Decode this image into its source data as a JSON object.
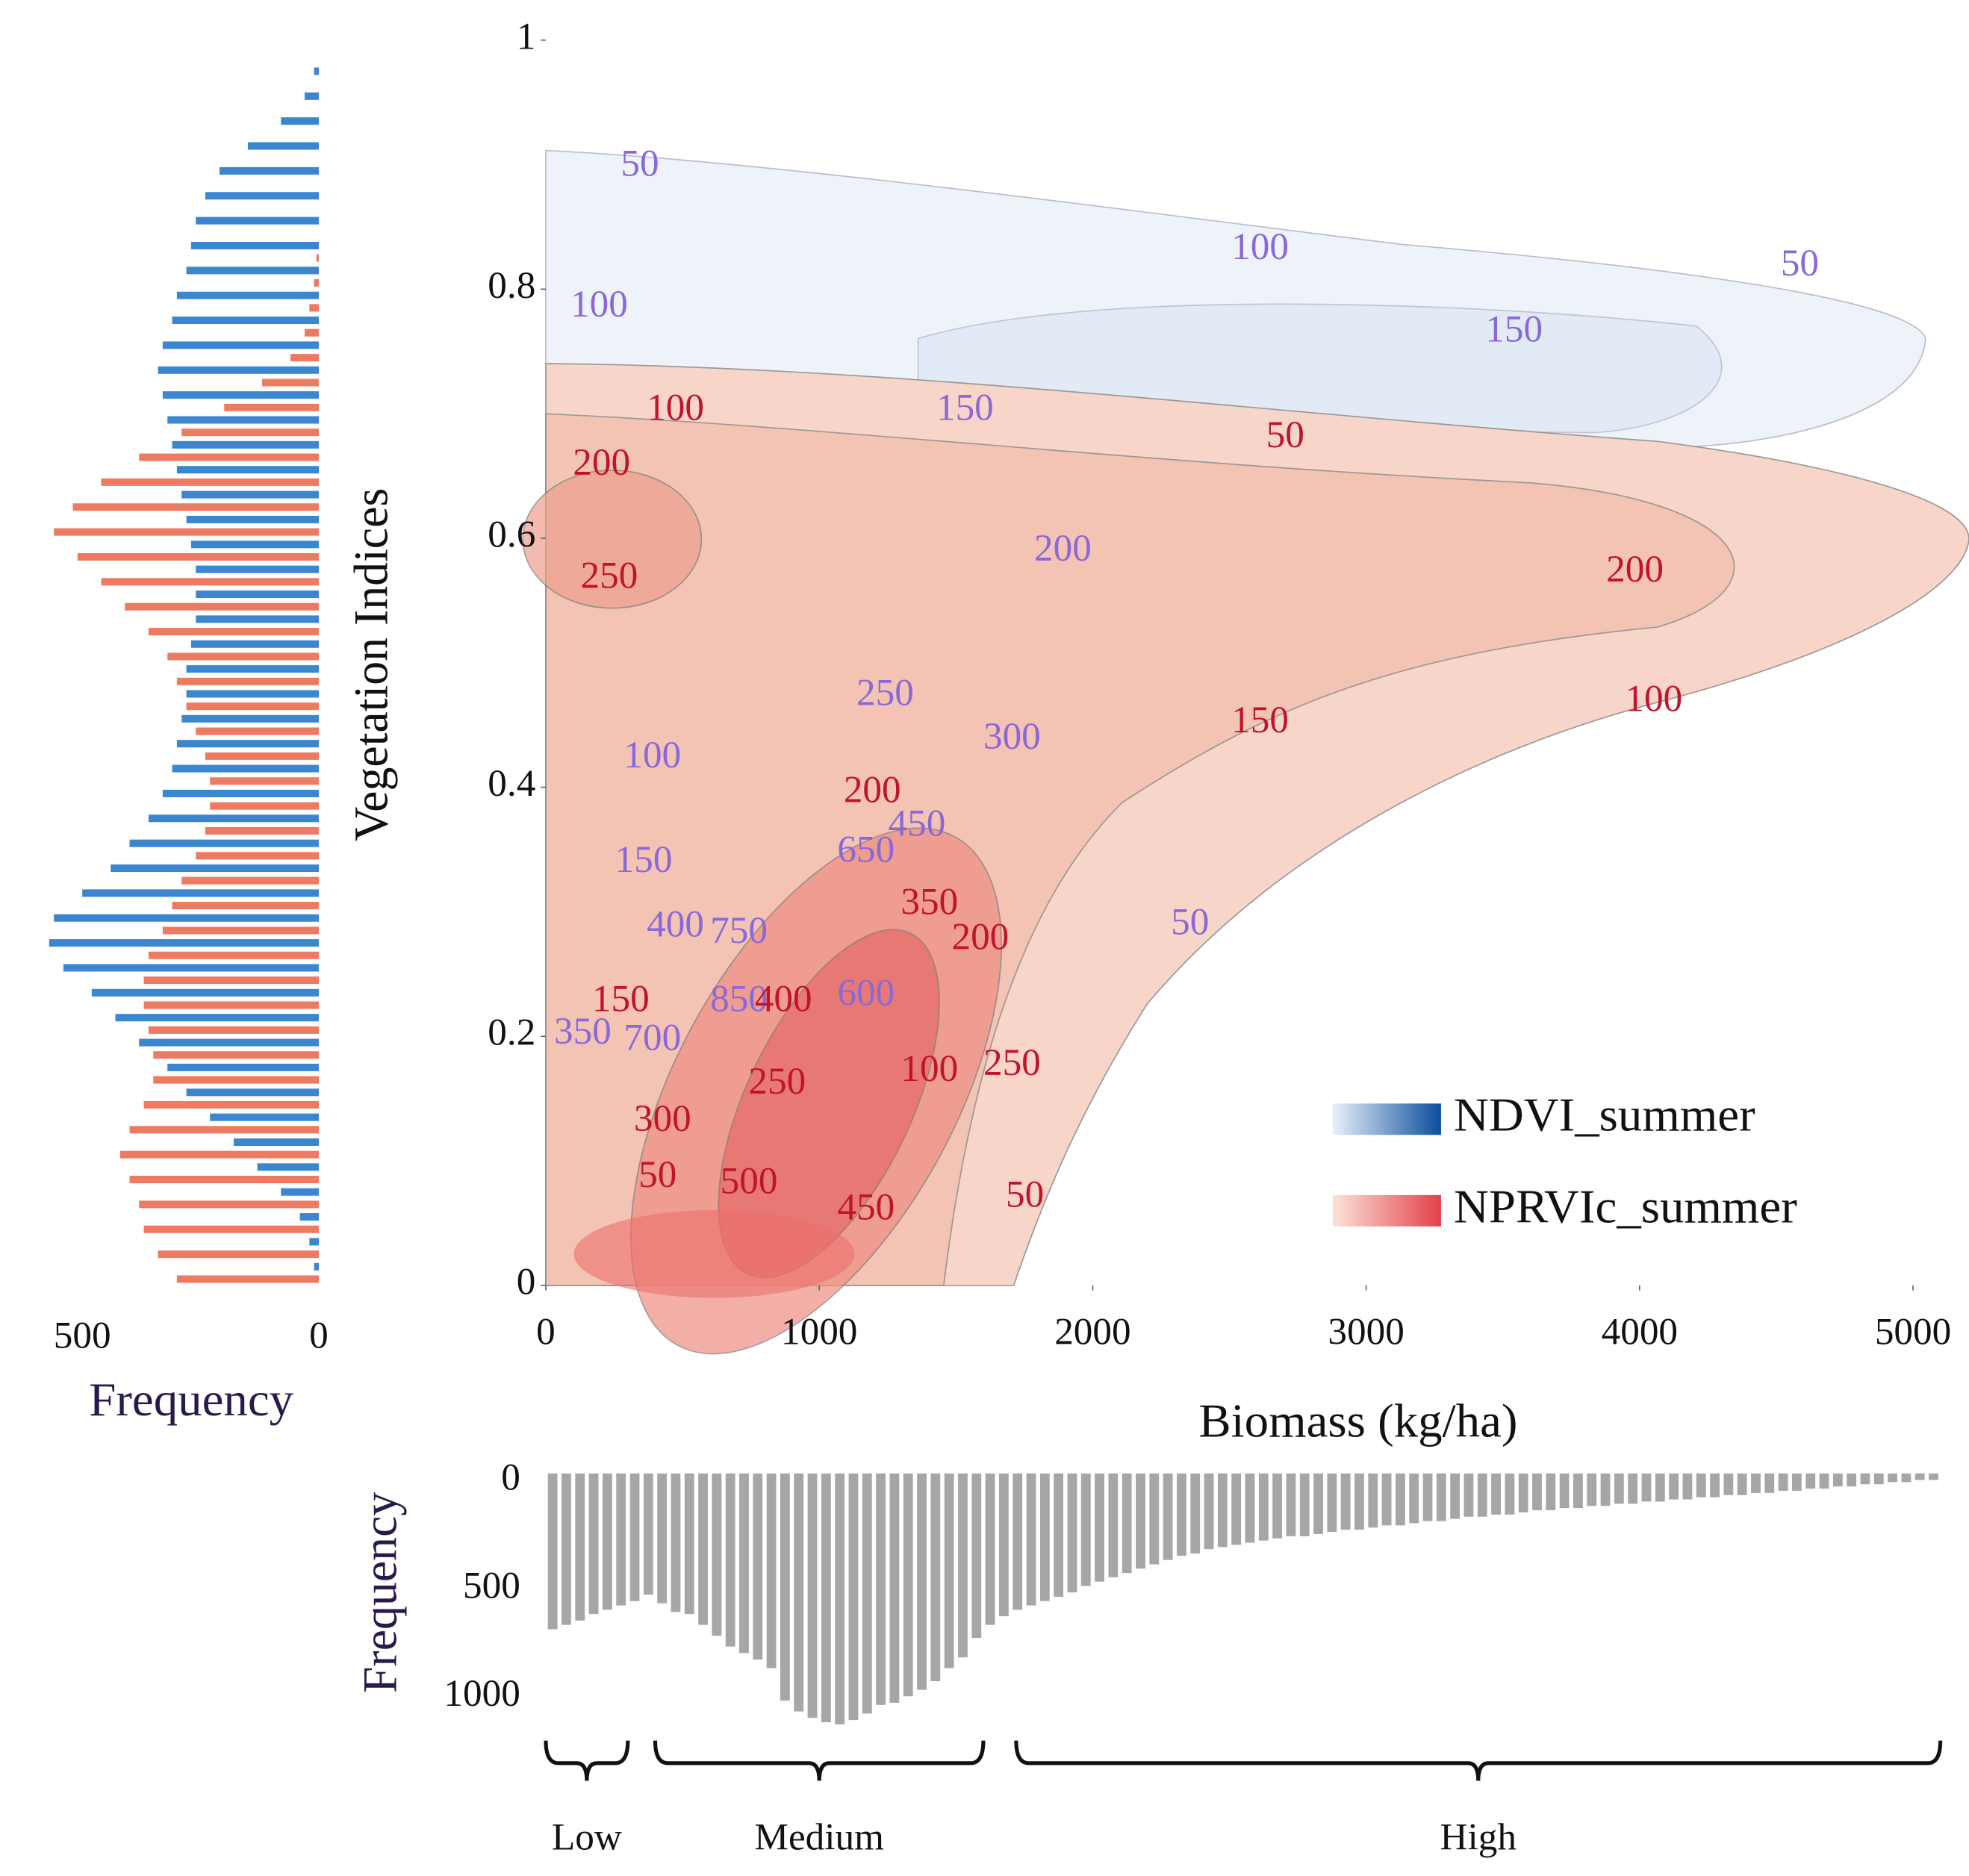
{
  "chart_data": [
    {
      "type": "contour",
      "xlabel": "Biomass (kg/ha)",
      "ylabel": "Vegetation Indices",
      "xlim": [
        0,
        5200
      ],
      "ylim": [
        0,
        1
      ],
      "xticks": [
        0,
        1000,
        2000,
        3000,
        4000,
        5000
      ],
      "yticks": [
        0,
        0.2,
        0.4,
        0.6,
        0.8,
        1
      ],
      "legend": "lower right",
      "series": [
        {
          "name": "NDVI_summer",
          "color": "#1f5fa8",
          "label_color": "#8a68d8",
          "labels": [
            {
              "level": 50,
              "x": 344,
              "y": 0.898
            },
            {
              "level": 100,
              "x": 2612,
              "y": 0.831
            },
            {
              "level": 50,
              "x": 4586,
              "y": 0.818
            },
            {
              "level": 100,
              "x": 195,
              "y": 0.785
            },
            {
              "level": 150,
              "x": 3541,
              "y": 0.765
            },
            {
              "level": 150,
              "x": 1533,
              "y": 0.702
            },
            {
              "level": 200,
              "x": 1891,
              "y": 0.589
            },
            {
              "level": 250,
              "x": 1241,
              "y": 0.473
            },
            {
              "level": 300,
              "x": 1705,
              "y": 0.438
            },
            {
              "level": 100,
              "x": 390,
              "y": 0.423
            },
            {
              "level": 450,
              "x": 1357,
              "y": 0.368
            },
            {
              "level": 650,
              "x": 1171,
              "y": 0.347
            },
            {
              "level": 150,
              "x": 358,
              "y": 0.339
            },
            {
              "level": 400,
              "x": 474,
              "y": 0.287
            },
            {
              "level": 750,
              "x": 706,
              "y": 0.282
            },
            {
              "level": 850,
              "x": 706,
              "y": 0.227
            },
            {
              "level": 350,
              "x": 135,
              "y": 0.201
            },
            {
              "level": 700,
              "x": 390,
              "y": 0.196
            },
            {
              "level": 50,
              "x": 2356,
              "y": 0.289
            },
            {
              "level": 600,
              "x": 1171,
              "y": 0.232
            }
          ]
        },
        {
          "name": "NPRVIc_summer",
          "color": "#e8505b",
          "label_color": "#c0142a",
          "labels": [
            {
              "level": 100,
              "x": 474,
              "y": 0.702
            },
            {
              "level": 200,
              "x": 204,
              "y": 0.658
            },
            {
              "level": 250,
              "x": 232,
              "y": 0.567
            },
            {
              "level": 50,
              "x": 2704,
              "y": 0.68
            },
            {
              "level": 200,
              "x": 3983,
              "y": 0.572
            },
            {
              "level": 150,
              "x": 2612,
              "y": 0.451
            },
            {
              "level": 100,
              "x": 4052,
              "y": 0.468
            },
            {
              "level": 200,
              "x": 1194,
              "y": 0.395
            },
            {
              "level": 350,
              "x": 1403,
              "y": 0.305
            },
            {
              "level": 200,
              "x": 1589,
              "y": 0.277
            },
            {
              "level": 400,
              "x": 869,
              "y": 0.227
            },
            {
              "level": 150,
              "x": 274,
              "y": 0.227
            },
            {
              "level": 100,
              "x": 1403,
              "y": 0.171
            },
            {
              "level": 250,
              "x": 1705,
              "y": 0.176
            },
            {
              "level": 250,
              "x": 846,
              "y": 0.161
            },
            {
              "level": 300,
              "x": 427,
              "y": 0.131
            },
            {
              "level": 50,
              "x": 409,
              "y": 0.086
            },
            {
              "level": 500,
              "x": 743,
              "y": 0.081
            },
            {
              "level": 450,
              "x": 1171,
              "y": 0.06
            },
            {
              "level": 50,
              "x": 1752,
              "y": 0.07
            }
          ]
        }
      ]
    },
    {
      "type": "hbar_histogram",
      "xlabel": "Frequency",
      "xlim": [
        0,
        620
      ],
      "xticks": [
        0,
        500
      ],
      "reversed": true,
      "bins": [
        0,
        0.02,
        0.04,
        0.06,
        0.08,
        0.1,
        0.12,
        0.14,
        0.16,
        0.18,
        0.2,
        0.22,
        0.24,
        0.26,
        0.28,
        0.3,
        0.32,
        0.34,
        0.36,
        0.38,
        0.4,
        0.42,
        0.44,
        0.46,
        0.48,
        0.5,
        0.52,
        0.54,
        0.56,
        0.58,
        0.6,
        0.62,
        0.64,
        0.66,
        0.68,
        0.7,
        0.72,
        0.74,
        0.76,
        0.78,
        0.8,
        0.82,
        0.84,
        0.86,
        0.88,
        0.9,
        0.92,
        0.94,
        0.96,
        0.98,
        1
      ],
      "series": [
        {
          "color": "#3a86d0",
          "values": [
            10,
            20,
            40,
            80,
            130,
            180,
            230,
            280,
            320,
            380,
            430,
            480,
            540,
            570,
            560,
            500,
            440,
            400,
            360,
            330,
            310,
            300,
            290,
            280,
            280,
            270,
            260,
            260,
            260,
            270,
            280,
            290,
            300,
            310,
            320,
            330,
            340,
            330,
            310,
            300,
            280,
            270,
            260,
            240,
            210,
            150,
            80,
            30,
            10,
            0
          ]
        },
        {
          "color": "#ee7a62",
          "values": [
            300,
            340,
            370,
            380,
            400,
            420,
            400,
            370,
            350,
            350,
            360,
            370,
            370,
            360,
            330,
            310,
            290,
            260,
            240,
            230,
            230,
            240,
            260,
            280,
            300,
            320,
            360,
            410,
            460,
            510,
            560,
            520,
            460,
            380,
            290,
            200,
            120,
            60,
            30,
            20,
            10,
            5,
            0,
            0,
            0,
            0,
            0,
            0,
            0,
            0
          ]
        }
      ]
    },
    {
      "type": "histogram",
      "ylabel": "Frequency",
      "ylim": [
        0,
        1200
      ],
      "yticks": [
        0,
        500,
        1000
      ],
      "reversed": true,
      "color": "#a6a6a6",
      "bins": [
        0,
        50,
        100,
        150,
        200,
        250,
        300,
        350,
        400,
        450,
        500,
        550,
        600,
        650,
        700,
        750,
        800,
        850,
        900,
        950,
        1000,
        1050,
        1100,
        1150,
        1200,
        1250,
        1300,
        1350,
        1400,
        1450,
        1500,
        1550,
        1600,
        1650,
        1700,
        1750,
        1800,
        1850,
        1900,
        1950,
        2000,
        2050,
        2100,
        2150,
        2200,
        2250,
        2300,
        2350,
        2400,
        2450,
        2500,
        2550,
        2600,
        2650,
        2700,
        2750,
        2800,
        2850,
        2900,
        2950,
        3000,
        3050,
        3100,
        3150,
        3200,
        3250,
        3300,
        3350,
        3400,
        3450,
        3500,
        3550,
        3600,
        3650,
        3700,
        3750,
        3800,
        3850,
        3900,
        3950,
        4000,
        4050,
        4100,
        4150,
        4200,
        4250,
        4300,
        4350,
        4400,
        4450,
        4500,
        4550,
        4600,
        4650,
        4700,
        4750,
        4800,
        4850,
        4900,
        4950,
        5000,
        5050,
        5100
      ],
      "values": [
        720,
        700,
        680,
        650,
        630,
        610,
        590,
        560,
        600,
        640,
        650,
        700,
        750,
        800,
        830,
        860,
        900,
        1050,
        1100,
        1130,
        1150,
        1160,
        1140,
        1110,
        1070,
        1060,
        1030,
        1000,
        960,
        900,
        850,
        760,
        700,
        660,
        630,
        610,
        590,
        570,
        550,
        520,
        500,
        480,
        460,
        440,
        420,
        400,
        380,
        370,
        350,
        340,
        330,
        320,
        310,
        300,
        290,
        290,
        280,
        270,
        260,
        260,
        250,
        240,
        240,
        230,
        220,
        220,
        210,
        200,
        200,
        190,
        190,
        180,
        170,
        170,
        160,
        160,
        150,
        150,
        140,
        140,
        130,
        130,
        120,
        120,
        110,
        110,
        100,
        100,
        90,
        90,
        80,
        80,
        70,
        70,
        60,
        60,
        50,
        50,
        40,
        40,
        30,
        30
      ],
      "groups": [
        {
          "label": "Low",
          "range": [
            0,
            300
          ]
        },
        {
          "label": "Medium",
          "range": [
            400,
            1600
          ]
        },
        {
          "label": "High",
          "range": [
            1720,
            5100
          ]
        }
      ]
    }
  ]
}
